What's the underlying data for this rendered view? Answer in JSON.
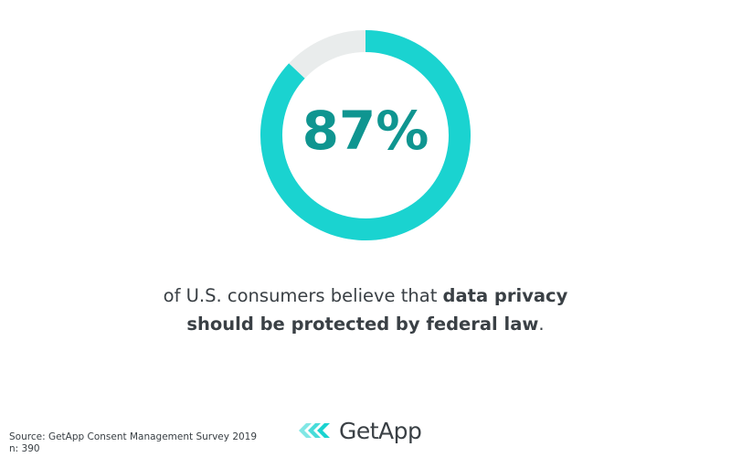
{
  "chart_data": {
    "type": "pie",
    "style": "donut",
    "values": [
      87,
      13
    ],
    "center_label": "87%",
    "colors": {
      "filled": "#1ad3d0",
      "remaining": "#e9ecec",
      "center_text": "#0f9590"
    }
  },
  "statement": {
    "line1_plain": "of U.S. consumers believe that ",
    "line1_bold": "data privacy",
    "line2_bold": "should be protected by federal law",
    "line2_plain": "."
  },
  "source": {
    "text": "Source: GetApp Consent Management Survey 2019",
    "n": "n: 390"
  },
  "logo": {
    "text": "GetApp",
    "icon": "getapp-chevrons-icon",
    "color": "#1ad3d0"
  }
}
